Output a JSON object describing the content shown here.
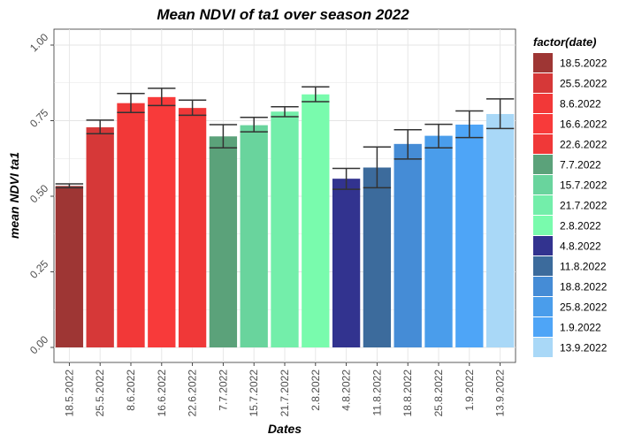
{
  "chart_data": {
    "type": "bar",
    "title": "Mean NDVI of ta1 over season 2022",
    "xlabel": "Dates",
    "ylabel": "mean NDVI ta1",
    "ylim": [
      0,
      1.03
    ],
    "yticks": [
      0.0,
      0.25,
      0.5,
      0.75,
      1.0
    ],
    "ytick_labels": [
      "0.00",
      "0.25",
      "0.50",
      "0.75",
      "1.00"
    ],
    "grid": true,
    "legend": {
      "title": "factor(date)",
      "position": "right"
    },
    "categories": [
      "18.5.2022",
      "25.5.2022",
      "8.6.2022",
      "16.6.2022",
      "22.6.2022",
      "7.7.2022",
      "15.7.2022",
      "21.7.2022",
      "2.8.2022",
      "4.8.2022",
      "11.8.2022",
      "18.8.2022",
      "25.8.2022",
      "1.9.2022",
      "13.9.2022"
    ],
    "values": [
      0.534,
      0.728,
      0.808,
      0.828,
      0.792,
      0.698,
      0.735,
      0.78,
      0.837,
      0.558,
      0.595,
      0.673,
      0.7,
      0.737,
      0.772
    ],
    "error_low": [
      0.528,
      0.707,
      0.777,
      0.8,
      0.768,
      0.66,
      0.713,
      0.763,
      0.813,
      0.523,
      0.528,
      0.623,
      0.66,
      0.694,
      0.724
    ],
    "error_high": [
      0.541,
      0.752,
      0.84,
      0.857,
      0.818,
      0.737,
      0.761,
      0.796,
      0.862,
      0.592,
      0.663,
      0.72,
      0.738,
      0.782,
      0.822
    ],
    "colors": [
      "#9E3634",
      "#D63838",
      "#F23838",
      "#F83A3A",
      "#F03838",
      "#5BA27A",
      "#69D49D",
      "#73EEAA",
      "#79FBAD",
      "#32338F",
      "#3C6B9C",
      "#458CD6",
      "#4A9DEB",
      "#4EA5F7",
      "#A9D8F7"
    ]
  }
}
